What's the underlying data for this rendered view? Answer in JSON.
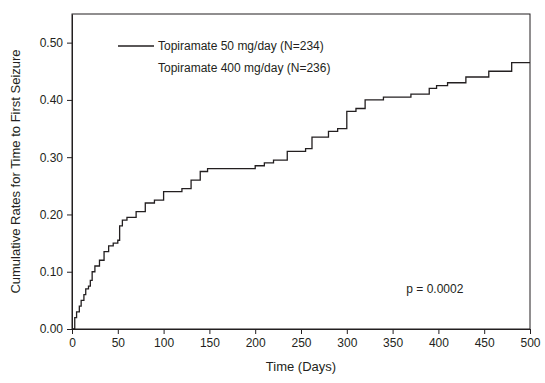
{
  "chart_data": {
    "type": "line",
    "x_label": "Time (Days)",
    "y_label": "Cumulative Rates for Time to First Seizure",
    "x": [
      0,
      3,
      5,
      8,
      10,
      13,
      15,
      18,
      20,
      22,
      25,
      30,
      35,
      40,
      45,
      50,
      52,
      55,
      60,
      70,
      80,
      90,
      100,
      120,
      130,
      140,
      148,
      200,
      210,
      220,
      235,
      255,
      262,
      280,
      290,
      300,
      310,
      320,
      340,
      370,
      390,
      398,
      410,
      430,
      455,
      480,
      500
    ],
    "series": [
      {
        "name": "Topiramate 50 mg/day (N=234)",
        "color": "#231f20",
        "values": [
          0,
          0.02,
          0.03,
          0.04,
          0.05,
          0.06,
          0.07,
          0.075,
          0.085,
          0.1,
          0.11,
          0.12,
          0.135,
          0.145,
          0.15,
          0.155,
          0.18,
          0.19,
          0.195,
          0.205,
          0.22,
          0.225,
          0.24,
          0.245,
          0.26,
          0.275,
          0.28,
          0.285,
          0.29,
          0.295,
          0.31,
          0.315,
          0.335,
          0.345,
          0.35,
          0.38,
          0.385,
          0.4,
          0.405,
          0.41,
          0.42,
          0.425,
          0.43,
          0.44,
          0.45,
          0.465,
          0.465
        ]
      },
      {
        "name": "Topiramate 400 mg/day (N=236)",
        "color": "#231f20",
        "values": [
          null,
          null,
          null,
          null,
          null,
          null,
          null,
          null,
          null,
          null,
          null,
          null,
          null,
          null,
          null,
          null,
          null,
          null,
          null,
          null,
          null,
          null,
          null,
          null,
          null,
          null,
          null,
          null,
          null,
          null,
          null,
          null,
          null,
          null,
          null,
          null,
          null,
          null,
          null,
          null,
          null,
          null,
          null,
          null,
          null,
          null,
          null
        ]
      }
    ],
    "xlim": [
      0,
      500
    ],
    "xticks": [
      0,
      50,
      100,
      150,
      200,
      250,
      300,
      350,
      400,
      450,
      500
    ],
    "ylim": [
      0,
      0.55
    ],
    "yticks": [
      {
        "value": 0,
        "label": "0.00"
      },
      {
        "value": 0.1,
        "label": "0.10"
      },
      {
        "value": 0.2,
        "label": "0.20"
      },
      {
        "value": 0.3,
        "label": "0.30"
      },
      {
        "value": 0.4,
        "label": "0.40"
      },
      {
        "value": 0.5,
        "label": "0.50"
      }
    ],
    "line_style": "step",
    "legend": "upper left",
    "grid": false,
    "annotations": [
      "p = 0.0002"
    ]
  }
}
